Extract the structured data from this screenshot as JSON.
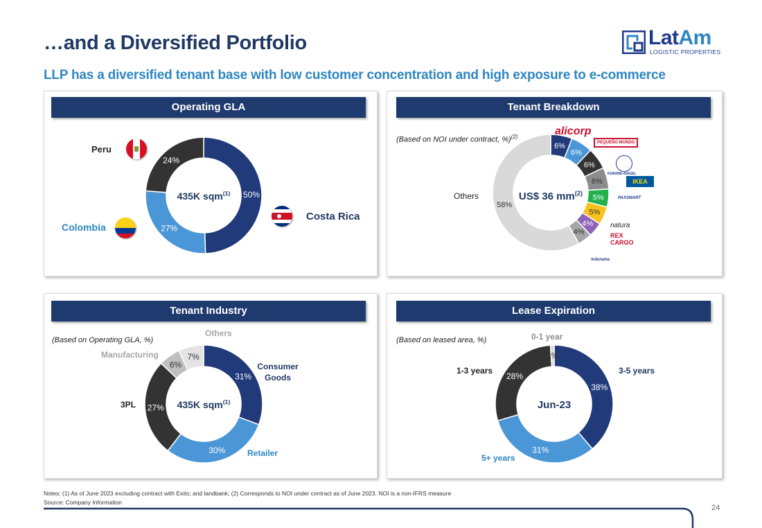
{
  "header": {
    "title": "…and a Diversified Portfolio",
    "subtitle": "LLP has a diversified tenant base with low customer concentration and high exposure to e-commerce"
  },
  "logo": {
    "word_lat": "Lat",
    "word_am": "Am",
    "tagline": "LOGISTIC PROPERTIES"
  },
  "panels": {
    "gla": {
      "title": "Operating GLA",
      "center": "435K sqm",
      "center_sup": "(1)",
      "countries": {
        "peru": "Peru",
        "colombia": "Colombia",
        "costa_rica": "Costa Rica"
      }
    },
    "tenant": {
      "title": "Tenant Breakdown",
      "note": "(Based on NOI under contract, %)",
      "note_sup": "(2)",
      "center": "US$ 36 mm",
      "center_sup": "(2)",
      "others_label": "Others",
      "brands": [
        "alicorp",
        "PEQUEÑO MUNDO",
        "KUEHNE+NAGEL",
        "IKEA",
        "PAXSMART",
        "natura",
        "REX CARGO",
        "indurama"
      ]
    },
    "industry": {
      "title": "Tenant Industry",
      "note": "(Based on Operating GLA, %)",
      "center": "435K sqm",
      "center_sup": "(1)",
      "labels": {
        "others": "Others",
        "manufacturing": "Manufacturing",
        "consumer": "Consumer Goods",
        "tpl": "3PL",
        "retailer": "Retailer"
      }
    },
    "lease": {
      "title": "Lease Expiration",
      "note": "(Based on leased area, %)",
      "center": "Jun-23",
      "labels": {
        "y01": "0-1 year",
        "y13": "1-3 years",
        "y35": "3-5 years",
        "y5p": "5+ years"
      }
    }
  },
  "chart_data": [
    {
      "type": "pie",
      "title": "Operating GLA",
      "categories": [
        "Costa Rica",
        "Colombia",
        "Peru"
      ],
      "values": [
        50,
        27,
        24
      ],
      "colors": [
        "#203A7A",
        "#4A96D6",
        "#333333"
      ]
    },
    {
      "type": "pie",
      "title": "Tenant Breakdown",
      "categories": [
        "Alicorp",
        "Pequeño Mundo",
        "Kuehne+Nagel",
        "IKEA",
        "PaxSmart",
        "Natura",
        "Rex Cargo",
        "Indurama",
        "Others"
      ],
      "values": [
        6,
        6,
        6,
        6,
        5,
        5,
        4,
        4,
        58
      ],
      "colors": [
        "#203A7A",
        "#4A96D6",
        "#333333",
        "#8C8C8C",
        "#22B04B",
        "#F7C21C",
        "#8E63B8",
        "#A6A6A6",
        "#D9D9D9"
      ]
    },
    {
      "type": "pie",
      "title": "Tenant Industry",
      "categories": [
        "Consumer Goods",
        "Retailer",
        "3PL",
        "Manufacturing",
        "Others"
      ],
      "values": [
        31,
        30,
        27,
        6,
        7
      ],
      "colors": [
        "#203A7A",
        "#4A96D6",
        "#333333",
        "#BFBFBF",
        "#E3E3E3"
      ]
    },
    {
      "type": "pie",
      "title": "Lease Expiration",
      "categories": [
        "3-5 years",
        "5+ years",
        "1-3 years",
        "0-1 year"
      ],
      "values": [
        38,
        31,
        28,
        1
      ],
      "colors": [
        "#203A7A",
        "#4A96D6",
        "#333333",
        "#D9D9D9"
      ]
    }
  ],
  "footer": {
    "notes": "Notes: (1) As of June 2023 excluding contract with Exito; and landbank; (2) Corresponds to NOI under contract as of June 2023. NOI is a non-IFRS measure",
    "source": "Source: Company Information",
    "page": "24"
  }
}
